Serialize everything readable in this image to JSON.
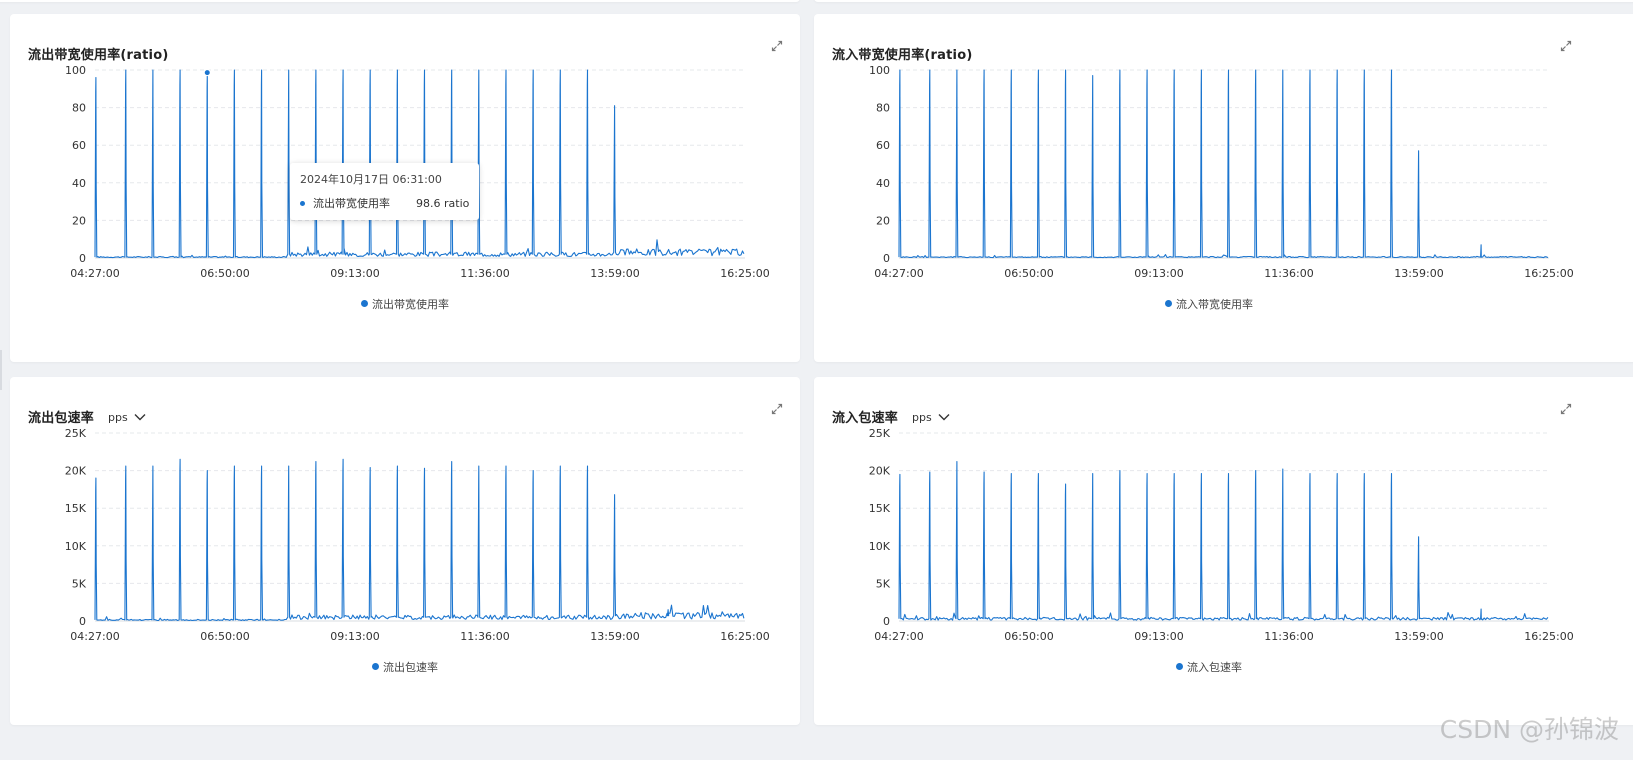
{
  "panels": [
    {
      "id": "out-bandwidth",
      "title": "流出带宽使用率(ratio)",
      "unit": "",
      "legend": "流出带宽使用率",
      "y_ticks": [
        "100",
        "80",
        "60",
        "40",
        "20",
        "0"
      ],
      "x_ticks": [
        "04:27:00",
        "06:50:00",
        "09:13:00",
        "11:36:00",
        "13:59:00",
        "16:25:00"
      ]
    },
    {
      "id": "in-bandwidth",
      "title": "流入带宽使用率(ratio)",
      "unit": "",
      "legend": "流入带宽使用率",
      "y_ticks": [
        "100",
        "80",
        "60",
        "40",
        "20",
        "0"
      ],
      "x_ticks": [
        "04:27:00",
        "06:50:00",
        "09:13:00",
        "11:36:00",
        "13:59:00",
        "16:25:00"
      ]
    },
    {
      "id": "out-packets",
      "title": "流出包速率",
      "unit": "pps",
      "legend": "流出包速率",
      "y_ticks": [
        "25K",
        "20K",
        "15K",
        "10K",
        "5K",
        "0"
      ],
      "x_ticks": [
        "04:27:00",
        "06:50:00",
        "09:13:00",
        "11:36:00",
        "13:59:00",
        "16:25:00"
      ]
    },
    {
      "id": "in-packets",
      "title": "流入包速率",
      "unit": "pps",
      "legend": "流入包速率",
      "y_ticks": [
        "25K",
        "20K",
        "15K",
        "10K",
        "5K",
        "0"
      ],
      "x_ticks": [
        "04:27:00",
        "06:50:00",
        "09:13:00",
        "11:36:00",
        "13:59:00",
        "16:25:00"
      ]
    }
  ],
  "tooltip": {
    "time": "2024年10月17日 06:31:00",
    "series": "流出带宽使用率",
    "value": "98.6 ratio"
  },
  "watermark": "CSDN @孙锦波",
  "colors": {
    "line": "#1b75cf",
    "grid": "#e6e8eb",
    "background": "#eff1f4"
  },
  "chart_data": [
    {
      "type": "line",
      "series": [
        {
          "name": "流出带宽使用率",
          "color": "#1b75cf"
        }
      ],
      "x_range": [
        "04:27:00",
        "16:25:00"
      ],
      "ylim": [
        0,
        100
      ],
      "grid": true,
      "legend_position": "bottom",
      "spikes": [
        {
          "time": "04:28:00",
          "value": 96
        },
        {
          "time": "05:01:00",
          "value": 100
        },
        {
          "time": "05:31:00",
          "value": 100
        },
        {
          "time": "06:01:00",
          "value": 100
        },
        {
          "time": "06:31:00",
          "value": 98.6
        },
        {
          "time": "07:01:00",
          "value": 100
        },
        {
          "time": "07:31:00",
          "value": 100
        },
        {
          "time": "08:01:00",
          "value": 100
        },
        {
          "time": "08:31:00",
          "value": 100
        },
        {
          "time": "09:01:00",
          "value": 100
        },
        {
          "time": "09:31:00",
          "value": 100
        },
        {
          "time": "10:01:00",
          "value": 100
        },
        {
          "time": "10:31:00",
          "value": 100
        },
        {
          "time": "11:01:00",
          "value": 100
        },
        {
          "time": "11:31:00",
          "value": 100
        },
        {
          "time": "12:01:00",
          "value": 100
        },
        {
          "time": "12:31:00",
          "value": 100
        },
        {
          "time": "13:01:00",
          "value": 100
        },
        {
          "time": "13:31:00",
          "value": 100
        },
        {
          "time": "14:01:00",
          "value": 81
        }
      ],
      "baseline": [
        {
          "from": "04:27:00",
          "to": "08:00:00",
          "value": 0.5
        },
        {
          "from": "08:00:00",
          "to": "13:59:00",
          "value": 2
        },
        {
          "from": "13:59:00",
          "to": "16:25:00",
          "value": 3
        }
      ],
      "bumps": []
    },
    {
      "type": "line",
      "series": [
        {
          "name": "流入带宽使用率",
          "color": "#1b75cf"
        }
      ],
      "x_range": [
        "04:27:00",
        "16:25:00"
      ],
      "ylim": [
        0,
        100
      ],
      "grid": true,
      "legend_position": "bottom",
      "spikes": [
        {
          "time": "04:28:00",
          "value": 100
        },
        {
          "time": "05:01:00",
          "value": 100
        },
        {
          "time": "05:31:00",
          "value": 100
        },
        {
          "time": "06:01:00",
          "value": 100
        },
        {
          "time": "06:31:00",
          "value": 100
        },
        {
          "time": "07:01:00",
          "value": 100
        },
        {
          "time": "07:31:00",
          "value": 100
        },
        {
          "time": "08:01:00",
          "value": 97
        },
        {
          "time": "08:31:00",
          "value": 100
        },
        {
          "time": "09:01:00",
          "value": 100
        },
        {
          "time": "09:31:00",
          "value": 100
        },
        {
          "time": "10:01:00",
          "value": 100
        },
        {
          "time": "10:31:00",
          "value": 100
        },
        {
          "time": "11:01:00",
          "value": 100
        },
        {
          "time": "11:31:00",
          "value": 100
        },
        {
          "time": "12:01:00",
          "value": 100
        },
        {
          "time": "12:31:00",
          "value": 100
        },
        {
          "time": "13:01:00",
          "value": 100
        },
        {
          "time": "13:31:00",
          "value": 100
        },
        {
          "time": "14:01:00",
          "value": 57
        }
      ],
      "baseline": [
        {
          "from": "04:27:00",
          "to": "16:25:00",
          "value": 0.5
        }
      ],
      "bumps": [
        {
          "time": "15:10:00",
          "value": 7
        }
      ]
    },
    {
      "type": "line",
      "series": [
        {
          "name": "流出包速率",
          "color": "#1b75cf"
        }
      ],
      "x_range": [
        "04:27:00",
        "16:25:00"
      ],
      "ylim": [
        0,
        25000
      ],
      "grid": true,
      "legend_position": "bottom",
      "spikes": [
        {
          "time": "04:28:00",
          "value": 19000
        },
        {
          "time": "05:01:00",
          "value": 20600
        },
        {
          "time": "05:31:00",
          "value": 20600
        },
        {
          "time": "06:01:00",
          "value": 21500
        },
        {
          "time": "06:31:00",
          "value": 20000
        },
        {
          "time": "07:01:00",
          "value": 20600
        },
        {
          "time": "07:31:00",
          "value": 20600
        },
        {
          "time": "08:01:00",
          "value": 20600
        },
        {
          "time": "08:31:00",
          "value": 21200
        },
        {
          "time": "09:01:00",
          "value": 21500
        },
        {
          "time": "09:31:00",
          "value": 20400
        },
        {
          "time": "10:01:00",
          "value": 20600
        },
        {
          "time": "10:31:00",
          "value": 20300
        },
        {
          "time": "11:01:00",
          "value": 21200
        },
        {
          "time": "11:31:00",
          "value": 20600
        },
        {
          "time": "12:01:00",
          "value": 20600
        },
        {
          "time": "12:31:00",
          "value": 20000
        },
        {
          "time": "13:01:00",
          "value": 20600
        },
        {
          "time": "13:31:00",
          "value": 20600
        },
        {
          "time": "14:01:00",
          "value": 16800
        }
      ],
      "baseline": [
        {
          "from": "04:27:00",
          "to": "08:00:00",
          "value": 150
        },
        {
          "from": "08:00:00",
          "to": "13:59:00",
          "value": 500
        },
        {
          "from": "13:59:00",
          "to": "16:25:00",
          "value": 700
        }
      ],
      "bumps": [
        {
          "time": "15:00:00",
          "value": 1500
        }
      ]
    },
    {
      "type": "line",
      "series": [
        {
          "name": "流入包速率",
          "color": "#1b75cf"
        }
      ],
      "x_range": [
        "04:27:00",
        "16:25:00"
      ],
      "ylim": [
        0,
        25000
      ],
      "grid": true,
      "legend_position": "bottom",
      "spikes": [
        {
          "time": "04:28:00",
          "value": 19500
        },
        {
          "time": "05:01:00",
          "value": 19800
        },
        {
          "time": "05:31:00",
          "value": 21200
        },
        {
          "time": "06:01:00",
          "value": 19800
        },
        {
          "time": "06:31:00",
          "value": 19600
        },
        {
          "time": "07:01:00",
          "value": 19600
        },
        {
          "time": "07:31:00",
          "value": 18200
        },
        {
          "time": "08:01:00",
          "value": 19600
        },
        {
          "time": "08:31:00",
          "value": 20000
        },
        {
          "time": "09:01:00",
          "value": 19600
        },
        {
          "time": "09:31:00",
          "value": 19600
        },
        {
          "time": "10:01:00",
          "value": 19600
        },
        {
          "time": "10:31:00",
          "value": 19600
        },
        {
          "time": "11:01:00",
          "value": 20000
        },
        {
          "time": "11:31:00",
          "value": 20200
        },
        {
          "time": "12:01:00",
          "value": 19600
        },
        {
          "time": "12:31:00",
          "value": 19600
        },
        {
          "time": "13:01:00",
          "value": 19600
        },
        {
          "time": "13:31:00",
          "value": 19600
        },
        {
          "time": "14:01:00",
          "value": 11200
        }
      ],
      "baseline": [
        {
          "from": "04:27:00",
          "to": "16:25:00",
          "value": 300
        }
      ],
      "bumps": [
        {
          "time": "15:10:00",
          "value": 1600
        }
      ]
    }
  ]
}
